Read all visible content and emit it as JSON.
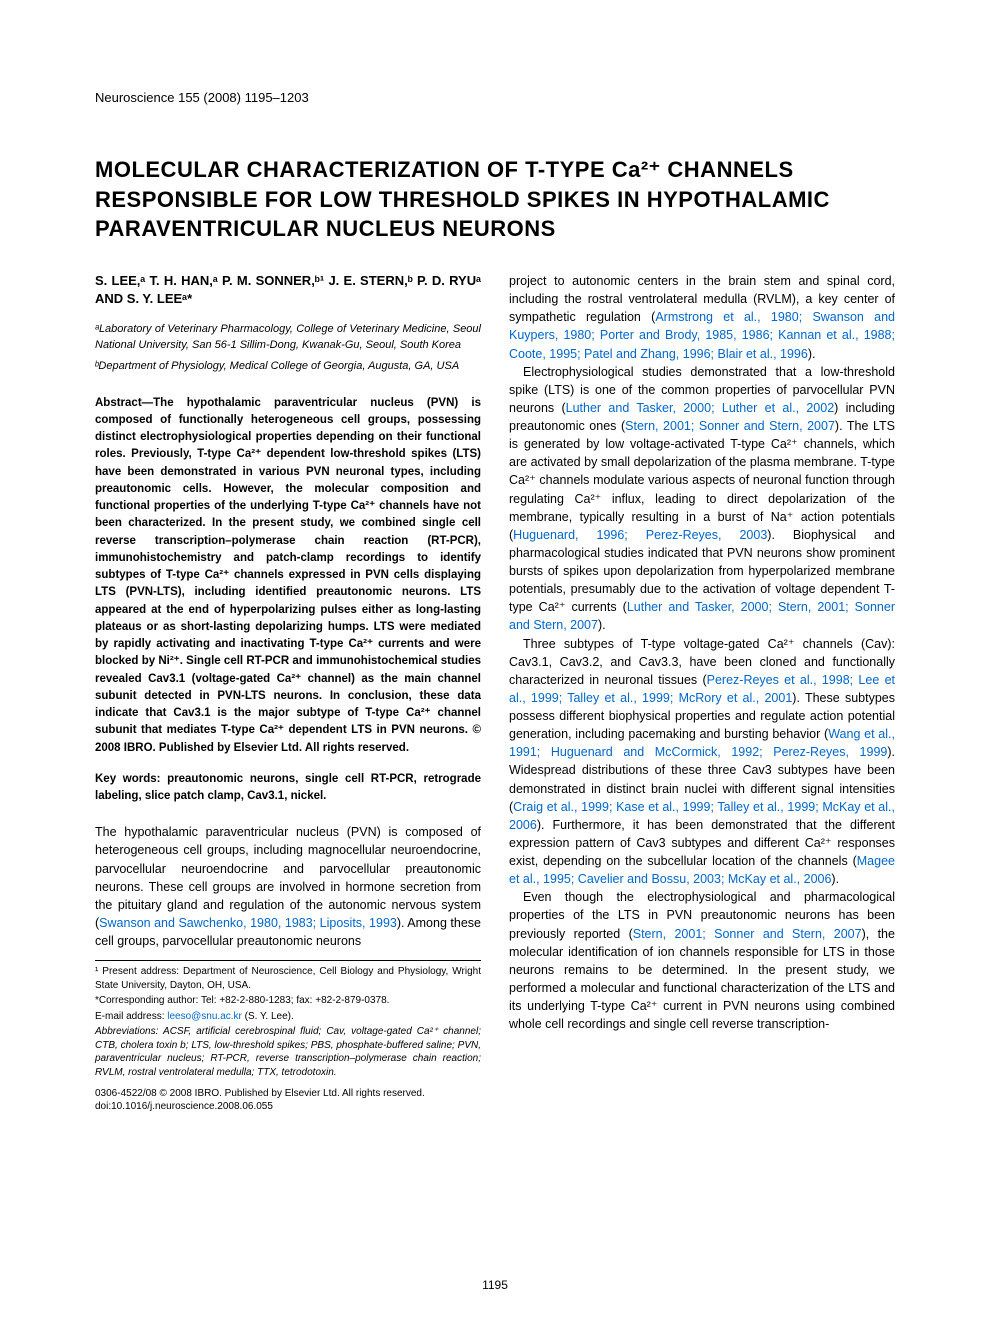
{
  "journal": {
    "citation": "Neuroscience 155 (2008) 1195–1203"
  },
  "title": "MOLECULAR CHARACTERIZATION OF T-TYPE Ca²⁺ CHANNELS RESPONSIBLE FOR LOW THRESHOLD SPIKES IN HYPOTHALAMIC PARAVENTRICULAR NUCLEUS NEURONS",
  "authors": "S. LEE,ᵃ T. H. HAN,ᵃ P. M. SONNER,ᵇ¹ J. E. STERN,ᵇ P. D. RYUᵃ AND S. Y. LEEᵃ*",
  "affiliations": {
    "a": "ᵃLaboratory of Veterinary Pharmacology, College of Veterinary Medicine, Seoul National University, San 56-1 Sillim-Dong, Kwanak-Gu, Seoul, South Korea",
    "b": "ᵇDepartment of Physiology, Medical College of Georgia, Augusta, GA, USA"
  },
  "abstract": "Abstract—The hypothalamic paraventricular nucleus (PVN) is composed of functionally heterogeneous cell groups, possessing distinct electrophysiological properties depending on their functional roles. Previously, T-type Ca²⁺ dependent low-threshold spikes (LTS) have been demonstrated in various PVN neuronal types, including preautonomic cells. However, the molecular composition and functional properties of the underlying T-type Ca²⁺ channels have not been characterized. In the present study, we combined single cell reverse transcription–polymerase chain reaction (RT-PCR), immunohistochemistry and patch-clamp recordings to identify subtypes of T-type Ca²⁺ channels expressed in PVN cells displaying LTS (PVN-LTS), including identified preautonomic neurons. LTS appeared at the end of hyperpolarizing pulses either as long-lasting plateaus or as short-lasting depolarizing humps. LTS were mediated by rapidly activating and inactivating T-type Ca²⁺ currents and were blocked by Ni²⁺. Single cell RT-PCR and immunohistochemical studies revealed Cav3.1 (voltage-gated Ca²⁺ channel) as the main channel subunit detected in PVN-LTS neurons. In conclusion, these data indicate that Cav3.1 is the major subtype of T-type Ca²⁺ channel subunit that mediates T-type Ca²⁺ dependent LTS in PVN neurons. © 2008 IBRO. Published by Elsevier Ltd. All rights reserved.",
  "keywords": "Key words: preautonomic neurons, single cell RT-PCR, retrograde labeling, slice patch clamp, Cav3.1, nickel.",
  "intro_p1_a": "The hypothalamic paraventricular nucleus (PVN) is composed of heterogeneous cell groups, including magnocellular neuroendocrine, parvocellular neuroendocrine and parvocellular preautonomic neurons. These cell groups are involved in hormone secretion from the pituitary gland and regulation of the autonomic nervous system (",
  "intro_p1_link1": "Swanson and Sawchenko, 1980, 1983; Liposits, 1993",
  "intro_p1_b": "). Among these cell groups, parvocellular preautonomic neurons",
  "col2_p1_a": "project to autonomic centers in the brain stem and spinal cord, including the rostral ventrolateral medulla (RVLM), a key center of sympathetic regulation (",
  "col2_p1_link": "Armstrong et al., 1980; Swanson and Kuypers, 1980; Porter and Brody, 1985, 1986; Kannan et al., 1988; Coote, 1995; Patel and Zhang, 1996; Blair et al., 1996",
  "col2_p1_b": ").",
  "col2_p2_a": "Electrophysiological studies demonstrated that a low-threshold spike (LTS) is one of the common properties of parvocellular PVN neurons (",
  "col2_p2_link1": "Luther and Tasker, 2000; Luther et al., 2002",
  "col2_p2_b": ") including preautonomic ones (",
  "col2_p2_link2": "Stern, 2001; Sonner and Stern, 2007",
  "col2_p2_c": "). The LTS is generated by low voltage-activated T-type Ca²⁺ channels, which are activated by small depolarization of the plasma membrane. T-type Ca²⁺ channels modulate various aspects of neuronal function through regulating Ca²⁺ influx, leading to direct depolarization of the membrane, typically resulting in a burst of Na⁺ action potentials (",
  "col2_p2_link3": "Huguenard, 1996; Perez-Reyes, 2003",
  "col2_p2_d": "). Biophysical and pharmacological studies indicated that PVN neurons show prominent bursts of spikes upon depolarization from hyperpolarized membrane potentials, presumably due to the activation of voltage dependent T-type Ca²⁺ currents (",
  "col2_p2_link4": "Luther and Tasker, 2000; Stern, 2001; Sonner and Stern, 2007",
  "col2_p2_e": ").",
  "col2_p3_a": "Three subtypes of T-type voltage-gated Ca²⁺ channels (Cav): Cav3.1, Cav3.2, and Cav3.3, have been cloned and functionally characterized in neuronal tissues (",
  "col2_p3_link1": "Perez-Reyes et al., 1998; Lee et al., 1999; Talley et al., 1999; McRory et al., 2001",
  "col2_p3_b": "). These subtypes possess different biophysical properties and regulate action potential generation, including pacemaking and bursting behavior (",
  "col2_p3_link2": "Wang et al., 1991; Huguenard and McCormick, 1992; Perez-Reyes, 1999",
  "col2_p3_c": "). Widespread distributions of these three Cav3 subtypes have been demonstrated in distinct brain nuclei with different signal intensities (",
  "col2_p3_link3": "Craig et al., 1999; Kase et al., 1999; Talley et al., 1999; McKay et al., 2006",
  "col2_p3_d": "). Furthermore, it has been demonstrated that the different expression pattern of Cav3 subtypes and different Ca²⁺ responses exist, depending on the subcellular location of the channels (",
  "col2_p3_link4": "Magee et al., 1995; Cavelier and Bossu, 2003; McKay et al., 2006",
  "col2_p3_e": ").",
  "col2_p4_a": "Even though the electrophysiological and pharmacological properties of the LTS in PVN preautonomic neurons has been previously reported (",
  "col2_p4_link1": "Stern, 2001; Sonner and Stern, 2007",
  "col2_p4_b": "), the molecular identification of ion channels responsible for LTS in those neurons remains to be determined. In the present study, we performed a molecular and functional characterization of the LTS and its underlying T-type Ca²⁺ current in PVN neurons using combined whole cell recordings and single cell reverse transcription-",
  "footnotes": {
    "f1": "¹ Present address: Department of Neuroscience, Cell Biology and Physiology, Wright State University, Dayton, OH, USA.",
    "f2": "*Corresponding author: Tel: +82-2-880-1283; fax: +82-2-879-0378.",
    "f3_a": "E-mail address: ",
    "f3_link": "leeso@snu.ac.kr",
    "f3_b": " (S. Y. Lee).",
    "f4": "Abbreviations: ACSF, artificial cerebrospinal fluid; Cav, voltage-gated Ca²⁺ channel; CTB, cholera toxin b; LTS, low-threshold spikes; PBS, phosphate-buffered saline; PVN, paraventricular nucleus; RT-PCR, reverse transcription–polymerase chain reaction; RVLM, rostral ventrolateral medulla; TTX, tetrodotoxin."
  },
  "copyright": {
    "line1": "0306-4522/08 © 2008 IBRO. Published by Elsevier Ltd. All rights reserved.",
    "line2": "doi:10.1016/j.neuroscience.2008.06.055"
  },
  "page_number": "1195",
  "colors": {
    "link": "#0066cc",
    "text": "#000000",
    "bg": "#ffffff"
  }
}
